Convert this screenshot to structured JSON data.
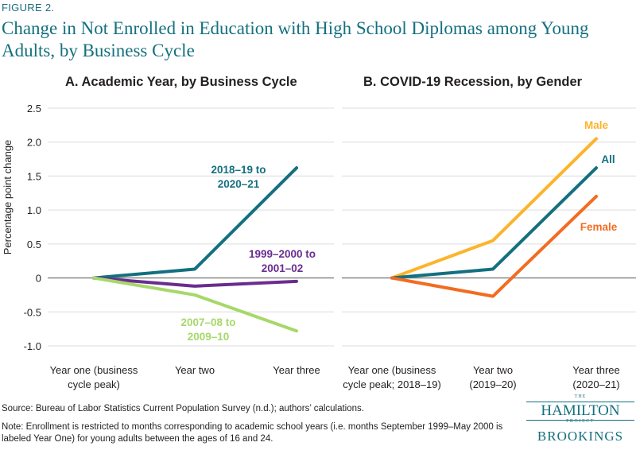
{
  "figure_label": "FIGURE 2.",
  "title": "Change in Not Enrolled in Education with High School Diplomas among Young Adults, by Business Cycle",
  "source": "Source: Bureau of Labor Statistics Current Population Survey (n.d.); authors’ calculations.",
  "note": "Note: Enrollment is restricted to months corresponding to academic school years (i.e. months September 1999–May 2000 is labeled Year One) for young adults between the ages of 16 and 24.",
  "logo": {
    "the": "THE",
    "hamilton": "HAMILTON",
    "project": "PROJECT",
    "brookings": "BROOKINGS"
  },
  "colors": {
    "teal": "#14707f",
    "purple": "#6a2c8f",
    "light_green": "#a6d86a",
    "yellow": "#fcb42b",
    "orange": "#f26c21",
    "zero_line": "#808080",
    "grid": "#dcdcdc"
  },
  "chart_data": [
    {
      "type": "line",
      "title": "A. Academic Year, by Business Cycle",
      "ylabel": "Percentage point change",
      "ylim": [
        -1.0,
        2.5
      ],
      "yticks": [
        2.5,
        2.0,
        1.5,
        1.0,
        0.5,
        0,
        -0.5,
        -1.0
      ],
      "ytick_labels": [
        "2.5",
        "2.0",
        "1.5",
        "1.0",
        "0.5",
        "0",
        "-0.5",
        "-1.0"
      ],
      "grid": true,
      "categories": [
        "Year one (business cycle peak)",
        "Year two",
        "Year three"
      ],
      "category_lines": [
        [
          "Year one (business",
          "cycle peak)"
        ],
        [
          "Year two"
        ],
        [
          "Year three"
        ]
      ],
      "series": [
        {
          "label_lines": [
            "2018–19 to",
            "2020–21"
          ],
          "color": "#14707f",
          "values": [
            0,
            0.13,
            1.62
          ]
        },
        {
          "label_lines": [
            "1999–2000 to",
            "2001–02"
          ],
          "color": "#6a2c8f",
          "values": [
            0,
            -0.12,
            -0.05
          ]
        },
        {
          "label_lines": [
            "2007–08 to",
            "2009–10"
          ],
          "color": "#a6d86a",
          "values": [
            0,
            -0.25,
            -0.78
          ]
        }
      ]
    },
    {
      "type": "line",
      "title": "B. COVID-19 Recession, by Gender",
      "ylim": [
        -1.0,
        2.5
      ],
      "grid": true,
      "categories": [
        "Year one (business cycle peak; 2018–19)",
        "Year two (2019–20)",
        "Year three (2020–21)"
      ],
      "category_lines": [
        [
          "Year one (business",
          "cycle peak; 2018–19)"
        ],
        [
          "Year two",
          "(2019–20)"
        ],
        [
          "Year three",
          "(2020–21)"
        ]
      ],
      "series": [
        {
          "label_lines": [
            "Male"
          ],
          "color": "#fcb42b",
          "values": [
            0,
            0.55,
            2.05
          ]
        },
        {
          "label_lines": [
            "All"
          ],
          "color": "#14707f",
          "values": [
            0,
            0.13,
            1.62
          ]
        },
        {
          "label_lines": [
            "Female"
          ],
          "color": "#f26c21",
          "values": [
            0,
            -0.27,
            1.2
          ]
        }
      ]
    }
  ]
}
